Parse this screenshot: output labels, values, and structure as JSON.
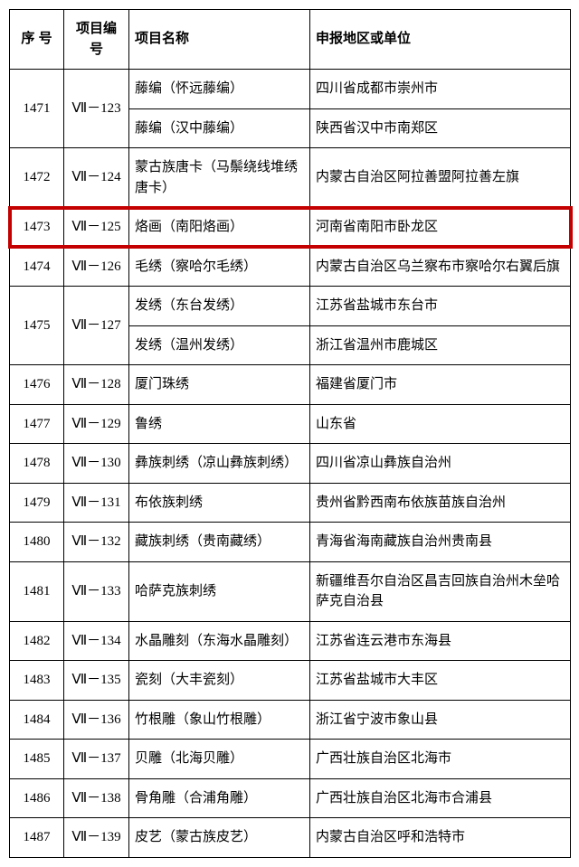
{
  "header": {
    "seq": "序 号",
    "code": "项目编号",
    "name": "项目名称",
    "region": "申报地区或单位"
  },
  "highlight_color": "#c40000",
  "rows": [
    {
      "seq": "1471",
      "code": "Ⅶ－123",
      "sub": [
        {
          "name": "藤编（怀远藤编）",
          "region": "四川省成都市崇州市"
        },
        {
          "name": "藤编（汉中藤编）",
          "region": "陕西省汉中市南郑区"
        }
      ]
    },
    {
      "seq": "1472",
      "code": "Ⅶ－124",
      "sub": [
        {
          "name": "蒙古族唐卡（马鬃绕线堆绣唐卡）",
          "region": "内蒙古自治区阿拉善盟阿拉善左旗"
        }
      ]
    },
    {
      "seq": "1473",
      "code": "Ⅶ－125",
      "highlight": true,
      "sub": [
        {
          "name": "烙画（南阳烙画）",
          "region": "河南省南阳市卧龙区"
        }
      ]
    },
    {
      "seq": "1474",
      "code": "Ⅶ－126",
      "sub": [
        {
          "name": "毛绣（察哈尔毛绣）",
          "region": "内蒙古自治区乌兰察布市察哈尔右翼后旗"
        }
      ]
    },
    {
      "seq": "1475",
      "code": "Ⅶ－127",
      "sub": [
        {
          "name": "发绣（东台发绣）",
          "region": "江苏省盐城市东台市"
        },
        {
          "name": "发绣（温州发绣）",
          "region": "浙江省温州市鹿城区"
        }
      ]
    },
    {
      "seq": "1476",
      "code": "Ⅶ－128",
      "sub": [
        {
          "name": "厦门珠绣",
          "region": "福建省厦门市"
        }
      ]
    },
    {
      "seq": "1477",
      "code": "Ⅶ－129",
      "sub": [
        {
          "name": "鲁绣",
          "region": "山东省"
        }
      ]
    },
    {
      "seq": "1478",
      "code": "Ⅶ－130",
      "sub": [
        {
          "name": "彝族刺绣（凉山彝族刺绣）",
          "region": "四川省凉山彝族自治州"
        }
      ]
    },
    {
      "seq": "1479",
      "code": "Ⅶ－131",
      "sub": [
        {
          "name": "布依族刺绣",
          "region": "贵州省黔西南布依族苗族自治州"
        }
      ]
    },
    {
      "seq": "1480",
      "code": "Ⅶ－132",
      "sub": [
        {
          "name": "藏族刺绣（贵南藏绣）",
          "region": "青海省海南藏族自治州贵南县"
        }
      ]
    },
    {
      "seq": "1481",
      "code": "Ⅶ－133",
      "sub": [
        {
          "name": "哈萨克族刺绣",
          "region": "新疆维吾尔自治区昌吉回族自治州木垒哈萨克自治县"
        }
      ]
    },
    {
      "seq": "1482",
      "code": "Ⅶ－134",
      "sub": [
        {
          "name": "水晶雕刻（东海水晶雕刻）",
          "region": "江苏省连云港市东海县"
        }
      ]
    },
    {
      "seq": "1483",
      "code": "Ⅶ－135",
      "sub": [
        {
          "name": "瓷刻（大丰瓷刻）",
          "region": "江苏省盐城市大丰区"
        }
      ]
    },
    {
      "seq": "1484",
      "code": "Ⅶ－136",
      "sub": [
        {
          "name": "竹根雕（象山竹根雕）",
          "region": "浙江省宁波市象山县"
        }
      ]
    },
    {
      "seq": "1485",
      "code": "Ⅶ－137",
      "sub": [
        {
          "name": "贝雕（北海贝雕）",
          "region": "广西壮族自治区北海市"
        }
      ]
    },
    {
      "seq": "1486",
      "code": "Ⅶ－138",
      "sub": [
        {
          "name": "骨角雕（合浦角雕）",
          "region": "广西壮族自治区北海市合浦县"
        }
      ]
    },
    {
      "seq": "1487",
      "code": "Ⅶ－139",
      "sub": [
        {
          "name": "皮艺（蒙古族皮艺）",
          "region": "内蒙古自治区呼和浩特市"
        }
      ]
    }
  ]
}
